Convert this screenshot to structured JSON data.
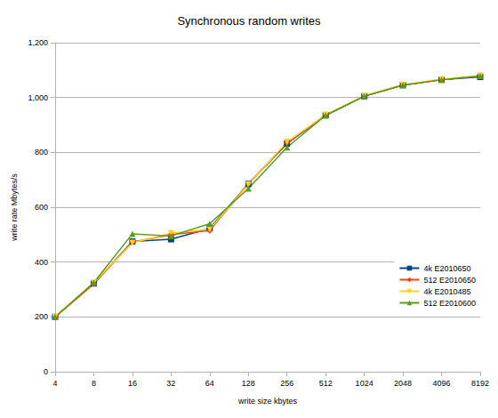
{
  "chart_data": {
    "type": "line",
    "title": "Synchronous random writes",
    "x_label": "write size kbytes",
    "y_label": "write rate Mbytes/s",
    "categories": [
      "4",
      "8",
      "16",
      "32",
      "64",
      "128",
      "256",
      "512",
      "1024",
      "2048",
      "4096",
      "8192"
    ],
    "series": [
      {
        "name": "4k E2010650",
        "color": "#004586",
        "marker": "square",
        "values": [
          200,
          322,
          475,
          483,
          523,
          685,
          832,
          935,
          1005,
          1045,
          1065,
          1075
        ]
      },
      {
        "name": "512 E2010650",
        "color": "#ff420e",
        "marker": "diamond",
        "values": [
          200,
          320,
          473,
          500,
          515,
          685,
          835,
          937,
          1005,
          1045,
          1065,
          1078
        ]
      },
      {
        "name": "4k E2010485",
        "color": "#ffd320",
        "marker": "triangle-down",
        "values": [
          200,
          325,
          470,
          505,
          520,
          683,
          838,
          937,
          1007,
          1047,
          1067,
          1080
        ]
      },
      {
        "name": "512 E2010600",
        "color": "#579d1c",
        "marker": "triangle",
        "values": [
          200,
          325,
          503,
          495,
          540,
          668,
          818,
          935,
          1005,
          1045,
          1065,
          1078
        ]
      }
    ],
    "ylim": [
      0,
      1200
    ],
    "yticks": [
      0,
      200,
      400,
      600,
      800,
      1000,
      1200
    ],
    "grid": true,
    "legend": "right"
  }
}
